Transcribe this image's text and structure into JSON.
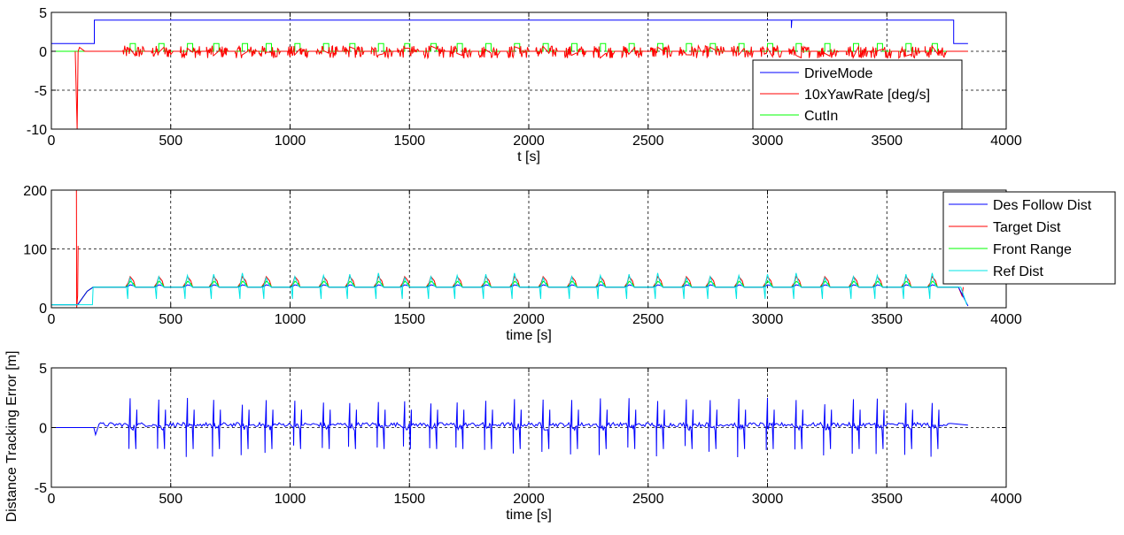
{
  "chart_data": [
    {
      "type": "line",
      "xlabel": "t [s]",
      "ylabel": "",
      "xlim": [
        0,
        4000
      ],
      "ylim": [
        -10,
        5
      ],
      "xticks": [
        0,
        500,
        1000,
        1500,
        2000,
        2500,
        3000,
        3500,
        4000
      ],
      "xtick_labels": [
        "0",
        "500",
        "1000",
        "1500",
        "2000",
        "2500",
        "3000",
        "3500",
        "4000"
      ],
      "yticks": [
        -10,
        -5,
        0,
        5
      ],
      "ytick_labels": [
        "-10",
        "-5",
        "0",
        "5"
      ],
      "grid": true,
      "legend": "lower-right",
      "series": [
        {
          "name": "DriveMode",
          "color": "#0000ff",
          "points": [
            [
              0,
              1
            ],
            [
              180,
              1
            ],
            [
              180,
              4
            ],
            [
              3100,
              4
            ],
            [
              3100,
              3
            ],
            [
              3102,
              4
            ],
            [
              3780,
              4
            ],
            [
              3780,
              1
            ],
            [
              3840,
              1
            ]
          ]
        },
        {
          "name": "10xYawRate [deg/s]",
          "color": "#ff0000",
          "points": [
            [
              100,
              0
            ],
            [
              108,
              -10
            ],
            [
              112,
              0
            ],
            [
              115,
              0.5
            ],
            [
              120,
              0.2
            ],
            [
              140,
              0
            ],
            [
              3840,
              0
            ]
          ]
        },
        {
          "name": "CutIn",
          "color": "#00ff00",
          "points": [
            [
              0,
              0
            ],
            [
              3840,
              0
            ]
          ]
        }
      ],
      "cut_in_times": [
        330,
        450,
        570,
        680,
        800,
        900,
        1020,
        1140,
        1250,
        1370,
        1480,
        1590,
        1700,
        1820,
        1940,
        2060,
        2180,
        2300,
        2420,
        2540,
        2660,
        2760,
        2880,
        3000,
        3120,
        3240,
        3360,
        3460,
        3580,
        3690
      ]
    },
    {
      "type": "line",
      "xlabel": "time [s]",
      "ylabel": "",
      "xlim": [
        0,
        4000
      ],
      "ylim": [
        0,
        200
      ],
      "xticks": [
        0,
        500,
        1000,
        1500,
        2000,
        2500,
        3000,
        3500,
        4000
      ],
      "xtick_labels": [
        "0",
        "500",
        "1000",
        "1500",
        "2000",
        "2500",
        "3000",
        "3500",
        "4000"
      ],
      "yticks": [
        0,
        100,
        200
      ],
      "ytick_labels": [
        "0",
        "100",
        "200"
      ],
      "grid": true,
      "legend": "outside-top-right",
      "series": [
        {
          "name": "Des Follow Dist",
          "color": "#0000ff",
          "points": [
            [
              0,
              5
            ],
            [
              110,
              5
            ],
            [
              140,
              22
            ],
            [
              175,
              35
            ],
            [
              3800,
              35
            ],
            [
              3840,
              3
            ]
          ]
        },
        {
          "name": "Target Dist",
          "color": "#ff0000",
          "points": [
            [
              0,
              200
            ],
            [
              105,
              200
            ],
            [
              108,
              0
            ],
            [
              112,
              30
            ],
            [
              175,
              38
            ],
            [
              3800,
              36
            ],
            [
              3820,
              10
            ],
            [
              3830,
              30
            ]
          ]
        },
        {
          "name": "Front Range",
          "color": "#00ff00",
          "points": [
            [
              0,
              5
            ],
            [
              110,
              5
            ],
            [
              175,
              35
            ],
            [
              3800,
              35
            ]
          ]
        },
        {
          "name": "Ref Dist",
          "color": "#00e5e5",
          "points": [
            [
              0,
              5
            ],
            [
              170,
              5
            ],
            [
              175,
              35
            ],
            [
              3800,
              35
            ],
            [
              3830,
              5
            ]
          ]
        }
      ],
      "cut_in_times": [
        330,
        450,
        570,
        680,
        800,
        900,
        1020,
        1140,
        1250,
        1370,
        1480,
        1590,
        1700,
        1820,
        1940,
        2060,
        2180,
        2300,
        2420,
        2540,
        2660,
        2760,
        2880,
        3000,
        3120,
        3240,
        3360,
        3460,
        3580,
        3690
      ]
    },
    {
      "type": "line",
      "xlabel": "time [s]",
      "ylabel": "Distance Tracking Error [m]",
      "xlim": [
        0,
        4000
      ],
      "ylim": [
        -5,
        5
      ],
      "xticks": [
        0,
        500,
        1000,
        1500,
        2000,
        2500,
        3000,
        3500,
        4000
      ],
      "xtick_labels": [
        "0",
        "500",
        "1000",
        "1500",
        "2000",
        "2500",
        "3000",
        "3500",
        "4000"
      ],
      "yticks": [
        -5,
        0,
        5
      ],
      "ytick_labels": [
        "-5",
        "0",
        "5"
      ],
      "grid": true,
      "legend": "none",
      "series": [
        {
          "name": "",
          "color": "#0000ff",
          "points": [
            [
              0,
              0
            ],
            [
              175,
              0
            ],
            [
              185,
              -0.6
            ],
            [
              200,
              0.3
            ],
            [
              3780,
              0.3
            ],
            [
              3840,
              0.2
            ]
          ]
        }
      ],
      "spike_times": [
        330,
        450,
        570,
        680,
        800,
        900,
        1020,
        1140,
        1250,
        1370,
        1480,
        1590,
        1700,
        1820,
        1940,
        2060,
        2180,
        2300,
        2420,
        2540,
        2660,
        2760,
        2880,
        3000,
        3120,
        3240,
        3360,
        3460,
        3580,
        3690
      ],
      "spike_max": 2.5,
      "spike_min": -2.5
    }
  ]
}
